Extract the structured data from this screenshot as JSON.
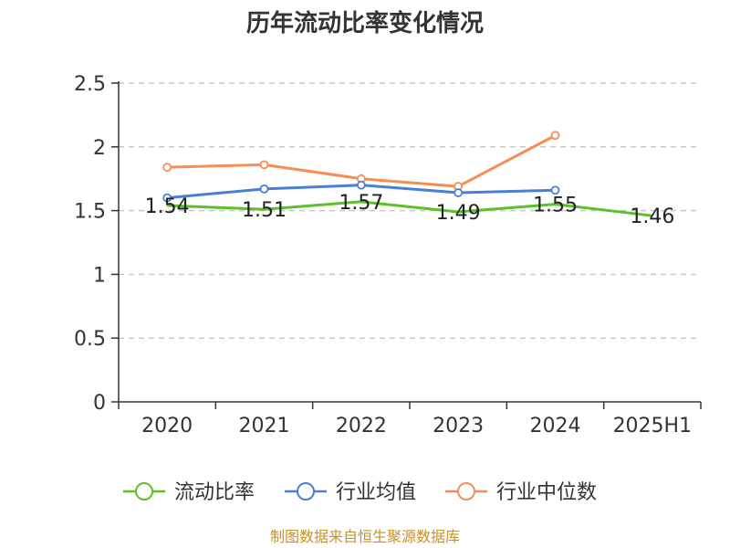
{
  "chart_data": {
    "type": "line",
    "title": "历年流动比率变化情况",
    "categories": [
      "2020",
      "2021",
      "2022",
      "2023",
      "2024",
      "2025H1"
    ],
    "ylim": [
      0,
      2.5
    ],
    "yticks": [
      0,
      0.5,
      1,
      1.5,
      2,
      2.5
    ],
    "ytick_labels": [
      "0",
      "0.5",
      "1",
      "1.5",
      "2",
      "2.5"
    ],
    "grid": true,
    "legend_position": "bottom",
    "series": [
      {
        "name": "流动比率",
        "color": "#5cc02b",
        "values": [
          1.54,
          1.51,
          1.57,
          1.49,
          1.55,
          1.46
        ],
        "labels": [
          "1.54",
          "1.51",
          "1.57",
          "1.49",
          "1.55",
          "1.46"
        ]
      },
      {
        "name": "行业均值",
        "color": "#4a7fd6",
        "values": [
          1.6,
          1.67,
          1.7,
          1.64,
          1.66,
          null
        ]
      },
      {
        "name": "行业中位数",
        "color": "#f58d57",
        "values": [
          1.84,
          1.86,
          1.75,
          1.69,
          2.09,
          null
        ]
      }
    ]
  },
  "footer": {
    "source": "制图数据来自恒生聚源数据库"
  }
}
